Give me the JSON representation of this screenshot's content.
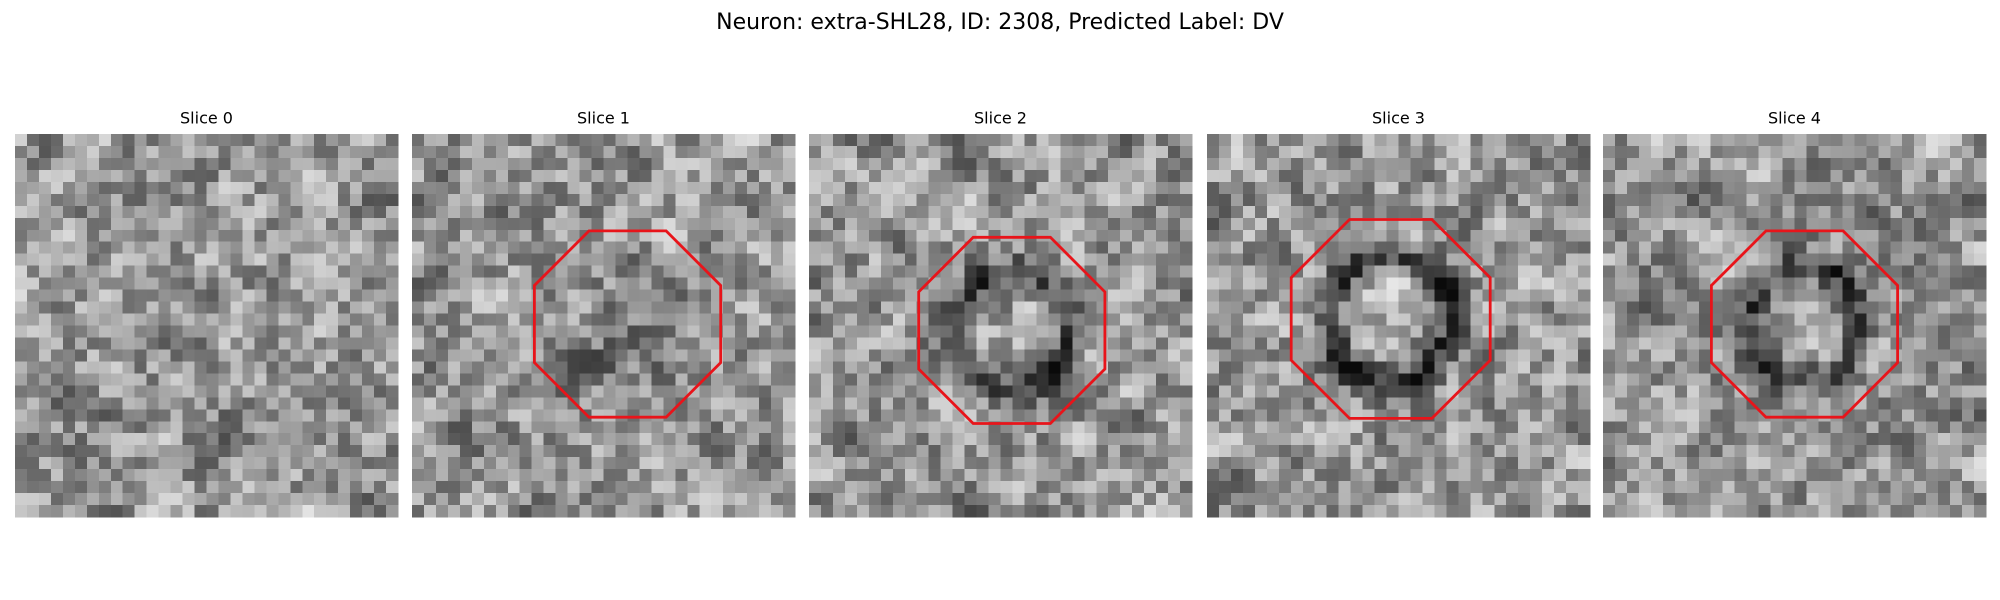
{
  "title": "Neuron: extra-SHL28, ID: 2308, Predicted Label: DV",
  "panels": [
    {
      "title": "Slice 0"
    },
    {
      "title": "Slice 1"
    },
    {
      "title": "Slice 2"
    },
    {
      "title": "Slice 3"
    },
    {
      "title": "Slice 4"
    }
  ]
}
